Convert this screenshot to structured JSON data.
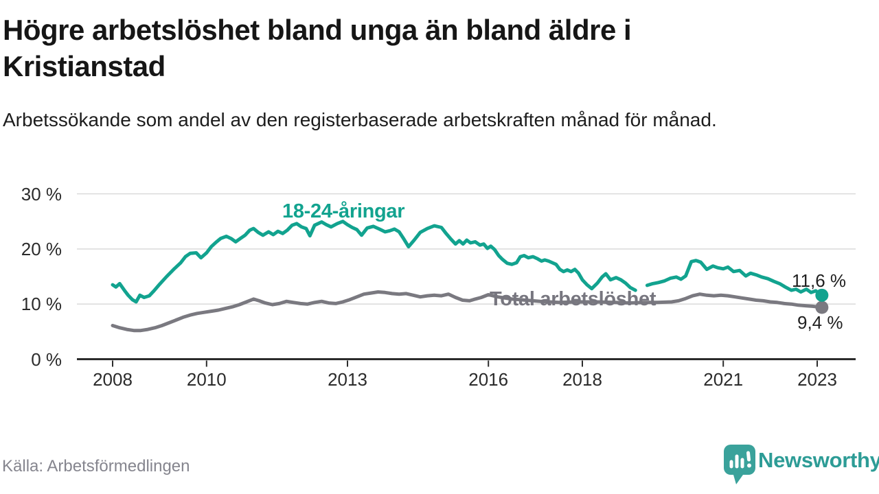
{
  "header": {
    "title": "Högre arbetslöshet bland unga än bland äldre i Kristianstad",
    "subtitle": "Arbetssökande som andel av den registerbaserade arbetskraften månad för månad."
  },
  "source": {
    "label": "Källa: Arbetsförmedlingen"
  },
  "logo": {
    "text": "Newsworthy",
    "icon": "speech-bubble-bar-chart-icon"
  },
  "colors": {
    "accent_teal": "#12a38f",
    "line_gray": "#7a7980",
    "label_gray": "#77767f",
    "grid": "#d9d9d9",
    "axis": "#2b2b2b",
    "text_dark": "#1f1f1f",
    "text_muted": "#85858e",
    "logo_teal": "#3aa29b"
  },
  "chart_data": {
    "type": "line",
    "title": "Högre arbetslöshet bland unga än bland äldre i Kristianstad",
    "subtitle": "Arbetssökande som andel av den registerbaserade arbetskraften månad för månad.",
    "xlabel": "",
    "ylabel": "",
    "grid": true,
    "legend_position": "inline-labels",
    "x_axis": {
      "ticks": [
        2008,
        2010,
        2013,
        2016,
        2018,
        2021,
        2023
      ],
      "labels": [
        "2008",
        "2010",
        "2013",
        "2016",
        "2018",
        "2021",
        "2023"
      ],
      "range": [
        2007.25,
        2023.8
      ]
    },
    "y_axis": {
      "ticks": [
        {
          "value": 30,
          "label": "30 %"
        },
        {
          "value": 20,
          "label": "20 %"
        },
        {
          "value": 10,
          "label": "10 %"
        },
        {
          "value": 0,
          "label": "0 %"
        }
      ],
      "range": [
        0,
        30
      ]
    },
    "series": [
      {
        "name": "18-24-åringar",
        "color": "#12a38f",
        "end_label": "11,6 %",
        "end_value": 11.6,
        "segments": [
          [
            [
              2008.0,
              13.5
            ],
            [
              2008.07,
              13.1
            ],
            [
              2008.15,
              13.7
            ],
            [
              2008.25,
              12.5
            ],
            [
              2008.33,
              11.6
            ],
            [
              2008.42,
              10.8
            ],
            [
              2008.5,
              10.4
            ],
            [
              2008.58,
              11.6
            ],
            [
              2008.67,
              11.2
            ],
            [
              2008.78,
              11.5
            ],
            [
              2008.88,
              12.4
            ],
            [
              2009.0,
              13.6
            ],
            [
              2009.15,
              15.0
            ],
            [
              2009.3,
              16.3
            ],
            [
              2009.45,
              17.5
            ],
            [
              2009.55,
              18.6
            ],
            [
              2009.65,
              19.2
            ],
            [
              2009.78,
              19.3
            ],
            [
              2009.88,
              18.4
            ],
            [
              2010.0,
              19.3
            ],
            [
              2010.1,
              20.4
            ],
            [
              2010.2,
              21.2
            ],
            [
              2010.3,
              21.9
            ],
            [
              2010.42,
              22.3
            ],
            [
              2010.52,
              21.9
            ],
            [
              2010.62,
              21.3
            ],
            [
              2010.72,
              21.9
            ],
            [
              2010.82,
              22.5
            ],
            [
              2010.92,
              23.4
            ],
            [
              2011.0,
              23.7
            ],
            [
              2011.1,
              23.0
            ],
            [
              2011.2,
              22.5
            ],
            [
              2011.32,
              23.1
            ],
            [
              2011.42,
              22.6
            ],
            [
              2011.52,
              23.2
            ],
            [
              2011.62,
              22.8
            ],
            [
              2011.72,
              23.4
            ],
            [
              2011.82,
              24.3
            ],
            [
              2011.92,
              24.6
            ],
            [
              2012.02,
              24.0
            ],
            [
              2012.12,
              23.7
            ],
            [
              2012.2,
              22.4
            ],
            [
              2012.3,
              24.3
            ],
            [
              2012.45,
              24.9
            ],
            [
              2012.55,
              24.4
            ],
            [
              2012.65,
              24.0
            ],
            [
              2012.78,
              24.6
            ],
            [
              2012.9,
              25.0
            ],
            [
              2013.0,
              24.4
            ],
            [
              2013.1,
              23.9
            ],
            [
              2013.2,
              23.5
            ],
            [
              2013.3,
              22.5
            ],
            [
              2013.42,
              23.8
            ],
            [
              2013.55,
              24.1
            ],
            [
              2013.68,
              23.6
            ],
            [
              2013.8,
              23.1
            ],
            [
              2013.9,
              23.3
            ],
            [
              2014.0,
              23.6
            ],
            [
              2014.1,
              23.1
            ],
            [
              2014.2,
              21.8
            ],
            [
              2014.3,
              20.4
            ],
            [
              2014.42,
              21.6
            ],
            [
              2014.55,
              23.0
            ],
            [
              2014.7,
              23.7
            ],
            [
              2014.85,
              24.2
            ],
            [
              2015.0,
              23.9
            ],
            [
              2015.1,
              22.8
            ],
            [
              2015.2,
              21.8
            ],
            [
              2015.3,
              20.9
            ],
            [
              2015.38,
              21.5
            ],
            [
              2015.46,
              20.9
            ],
            [
              2015.54,
              21.6
            ],
            [
              2015.62,
              21.1
            ],
            [
              2015.72,
              21.3
            ],
            [
              2015.82,
              20.7
            ],
            [
              2015.9,
              20.9
            ],
            [
              2015.98,
              20.1
            ],
            [
              2016.05,
              20.5
            ],
            [
              2016.13,
              19.9
            ],
            [
              2016.22,
              18.8
            ],
            [
              2016.3,
              18.1
            ],
            [
              2016.4,
              17.4
            ],
            [
              2016.5,
              17.2
            ],
            [
              2016.6,
              17.5
            ],
            [
              2016.68,
              18.6
            ],
            [
              2016.76,
              18.8
            ],
            [
              2016.85,
              18.4
            ],
            [
              2016.95,
              18.6
            ],
            [
              2017.05,
              18.2
            ],
            [
              2017.13,
              17.8
            ],
            [
              2017.2,
              18.0
            ],
            [
              2017.28,
              17.8
            ],
            [
              2017.36,
              17.5
            ],
            [
              2017.44,
              17.2
            ],
            [
              2017.52,
              16.3
            ],
            [
              2017.6,
              15.9
            ],
            [
              2017.68,
              16.2
            ],
            [
              2017.76,
              15.9
            ],
            [
              2017.84,
              16.3
            ],
            [
              2017.92,
              15.6
            ],
            [
              2018.0,
              14.4
            ],
            [
              2018.1,
              13.5
            ],
            [
              2018.2,
              12.8
            ],
            [
              2018.32,
              13.8
            ],
            [
              2018.42,
              14.9
            ],
            [
              2018.5,
              15.5
            ],
            [
              2018.6,
              14.4
            ],
            [
              2018.72,
              14.8
            ],
            [
              2018.82,
              14.4
            ],
            [
              2018.92,
              13.8
            ],
            [
              2019.02,
              13.0
            ],
            [
              2019.13,
              12.5
            ]
          ],
          [
            [
              2019.38,
              13.4
            ],
            [
              2019.5,
              13.7
            ],
            [
              2019.62,
              13.9
            ],
            [
              2019.75,
              14.2
            ],
            [
              2019.88,
              14.7
            ],
            [
              2020.0,
              14.9
            ],
            [
              2020.1,
              14.5
            ],
            [
              2020.2,
              15.1
            ],
            [
              2020.32,
              17.7
            ],
            [
              2020.42,
              17.9
            ],
            [
              2020.52,
              17.6
            ],
            [
              2020.65,
              16.3
            ],
            [
              2020.78,
              16.9
            ],
            [
              2020.88,
              16.6
            ],
            [
              2021.0,
              16.4
            ],
            [
              2021.1,
              16.7
            ],
            [
              2021.22,
              15.9
            ],
            [
              2021.35,
              16.1
            ],
            [
              2021.48,
              15.1
            ],
            [
              2021.58,
              15.6
            ],
            [
              2021.7,
              15.3
            ],
            [
              2021.82,
              14.9
            ],
            [
              2021.95,
              14.6
            ],
            [
              2022.08,
              14.1
            ],
            [
              2022.2,
              13.7
            ],
            [
              2022.32,
              13.1
            ],
            [
              2022.45,
              12.5
            ],
            [
              2022.55,
              12.7
            ],
            [
              2022.65,
              12.2
            ],
            [
              2022.77,
              12.7
            ],
            [
              2022.87,
              12.1
            ],
            [
              2022.97,
              12.4
            ],
            [
              2023.05,
              11.9
            ],
            [
              2023.1,
              11.6
            ]
          ]
        ]
      },
      {
        "name": "Total arbetslöshet",
        "color": "#7a7980",
        "end_label": "9,4 %",
        "end_value": 9.4,
        "segments": [
          [
            [
              2008.0,
              6.1
            ],
            [
              2008.15,
              5.7
            ],
            [
              2008.3,
              5.4
            ],
            [
              2008.45,
              5.2
            ],
            [
              2008.6,
              5.2
            ],
            [
              2008.75,
              5.4
            ],
            [
              2008.9,
              5.7
            ],
            [
              2009.05,
              6.1
            ],
            [
              2009.2,
              6.6
            ],
            [
              2009.35,
              7.1
            ],
            [
              2009.5,
              7.6
            ],
            [
              2009.65,
              8.0
            ],
            [
              2009.8,
              8.3
            ],
            [
              2009.95,
              8.5
            ],
            [
              2010.1,
              8.7
            ],
            [
              2010.25,
              8.9
            ],
            [
              2010.4,
              9.2
            ],
            [
              2010.55,
              9.5
            ],
            [
              2010.7,
              9.9
            ],
            [
              2010.85,
              10.4
            ],
            [
              2011.0,
              10.9
            ],
            [
              2011.12,
              10.6
            ],
            [
              2011.25,
              10.2
            ],
            [
              2011.4,
              9.9
            ],
            [
              2011.55,
              10.1
            ],
            [
              2011.7,
              10.5
            ],
            [
              2011.85,
              10.3
            ],
            [
              2012.0,
              10.1
            ],
            [
              2012.15,
              10.0
            ],
            [
              2012.3,
              10.3
            ],
            [
              2012.45,
              10.5
            ],
            [
              2012.6,
              10.2
            ],
            [
              2012.75,
              10.1
            ],
            [
              2012.9,
              10.4
            ],
            [
              2013.05,
              10.8
            ],
            [
              2013.2,
              11.3
            ],
            [
              2013.35,
              11.8
            ],
            [
              2013.5,
              12.0
            ],
            [
              2013.65,
              12.2
            ],
            [
              2013.8,
              12.1
            ],
            [
              2013.95,
              11.9
            ],
            [
              2014.1,
              11.8
            ],
            [
              2014.25,
              11.9
            ],
            [
              2014.4,
              11.6
            ],
            [
              2014.55,
              11.3
            ],
            [
              2014.7,
              11.5
            ],
            [
              2014.85,
              11.6
            ],
            [
              2015.0,
              11.5
            ],
            [
              2015.15,
              11.8
            ],
            [
              2015.3,
              11.2
            ],
            [
              2015.45,
              10.7
            ],
            [
              2015.6,
              10.6
            ],
            [
              2015.72,
              10.9
            ],
            [
              2015.85,
              11.2
            ],
            [
              2016.0,
              11.7
            ],
            [
              2016.2,
              11.3
            ],
            [
              2016.5,
              10.9
            ],
            [
              2016.8,
              10.7
            ],
            [
              2017.1,
              10.5
            ],
            [
              2017.5,
              10.3
            ],
            [
              2017.9,
              10.4
            ],
            [
              2018.3,
              10.4
            ],
            [
              2018.7,
              10.3
            ],
            [
              2019.0,
              10.2
            ],
            [
              2019.3,
              10.3
            ],
            [
              2019.6,
              10.3
            ],
            [
              2019.9,
              10.4
            ],
            [
              2020.05,
              10.6
            ],
            [
              2020.2,
              11.0
            ],
            [
              2020.35,
              11.5
            ],
            [
              2020.5,
              11.8
            ],
            [
              2020.65,
              11.6
            ],
            [
              2020.8,
              11.5
            ],
            [
              2020.95,
              11.6
            ],
            [
              2021.1,
              11.5
            ],
            [
              2021.25,
              11.3
            ],
            [
              2021.4,
              11.1
            ],
            [
              2021.55,
              10.9
            ],
            [
              2021.7,
              10.7
            ],
            [
              2021.85,
              10.6
            ],
            [
              2022.0,
              10.4
            ],
            [
              2022.15,
              10.3
            ],
            [
              2022.3,
              10.1
            ],
            [
              2022.45,
              10.0
            ],
            [
              2022.6,
              9.8
            ],
            [
              2022.75,
              9.7
            ],
            [
              2022.9,
              9.6
            ],
            [
              2023.0,
              9.5
            ],
            [
              2023.1,
              9.4
            ]
          ]
        ]
      }
    ]
  }
}
